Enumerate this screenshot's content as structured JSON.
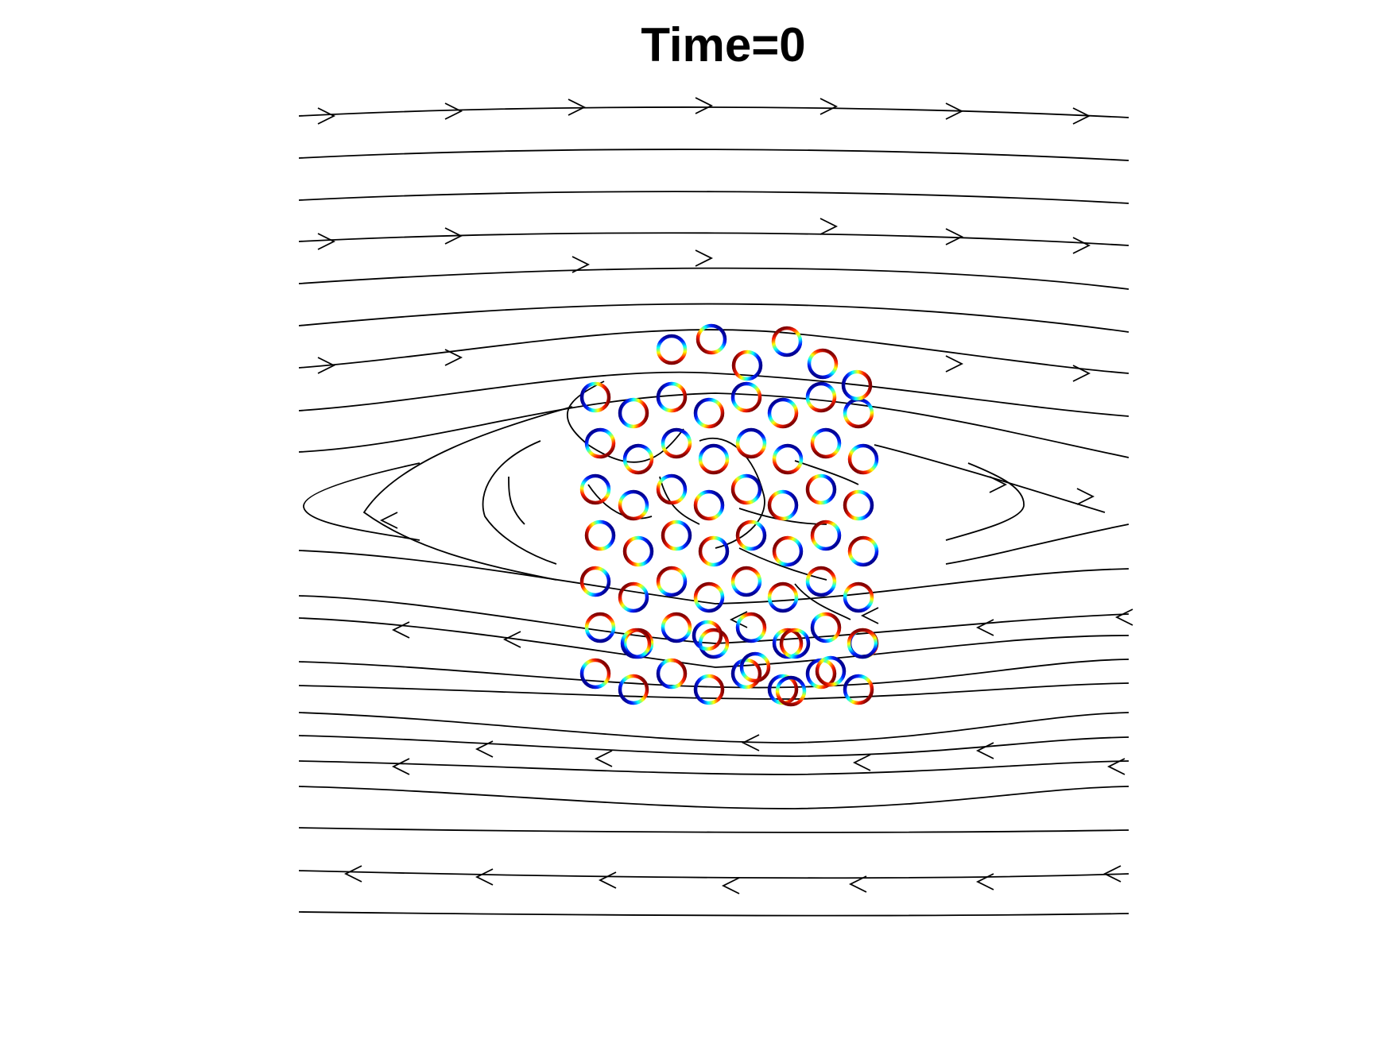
{
  "title": "Time=0",
  "colors": {
    "streamline": "#000000",
    "particle_colormap": [
      "#00008f",
      "#0020ff",
      "#00ffff",
      "#ffff00",
      "#ff2000",
      "#800000"
    ]
  }
}
